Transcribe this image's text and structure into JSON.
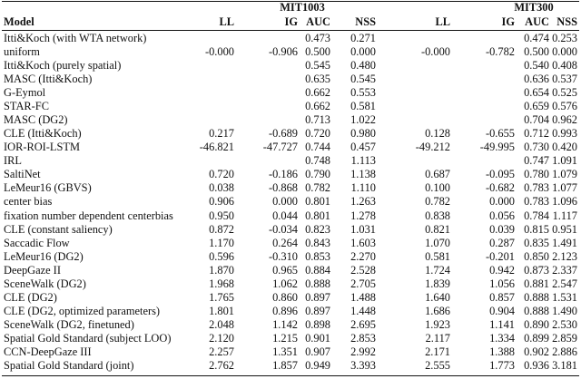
{
  "table": {
    "groups": [
      "MIT1003",
      "MIT300"
    ],
    "columns": [
      "Model",
      "LL",
      "IG",
      "AUC",
      "NSS",
      "LL",
      "IG",
      "AUC",
      "NSS"
    ],
    "rows": [
      [
        "Itti&Koch (with WTA network)",
        null,
        null,
        "0.473",
        "0.271",
        null,
        null,
        "0.474",
        "0.253"
      ],
      [
        "uniform",
        "-0.000",
        "-0.906",
        "0.500",
        "0.000",
        "-0.000",
        "-0.782",
        "0.500",
        "0.000"
      ],
      [
        "Itti&Koch (purely spatial)",
        null,
        null,
        "0.545",
        "0.480",
        null,
        null,
        "0.540",
        "0.408"
      ],
      [
        "MASC (Itti&Koch)",
        null,
        null,
        "0.635",
        "0.545",
        null,
        null,
        "0.636",
        "0.537"
      ],
      [
        "G-Eymol",
        null,
        null,
        "0.662",
        "0.553",
        null,
        null,
        "0.654",
        "0.525"
      ],
      [
        "STAR-FC",
        null,
        null,
        "0.662",
        "0.581",
        null,
        null,
        "0.659",
        "0.576"
      ],
      [
        "MASC (DG2)",
        null,
        null,
        "0.713",
        "1.022",
        null,
        null,
        "0.704",
        "0.962"
      ],
      [
        "CLE (Itti&Koch)",
        "0.217",
        "-0.689",
        "0.720",
        "0.980",
        "0.128",
        "-0.655",
        "0.712",
        "0.993"
      ],
      [
        "IOR-ROI-LSTM",
        "-46.821",
        "-47.727",
        "0.744",
        "0.457",
        "-49.212",
        "-49.995",
        "0.730",
        "0.420"
      ],
      [
        "IRL",
        null,
        null,
        "0.748",
        "1.113",
        null,
        null,
        "0.747",
        "1.091"
      ],
      [
        "SaltiNet",
        "0.720",
        "-0.186",
        "0.790",
        "1.138",
        "0.687",
        "-0.095",
        "0.780",
        "1.079"
      ],
      [
        "LeMeur16 (GBVS)",
        "0.038",
        "-0.868",
        "0.782",
        "1.110",
        "0.100",
        "-0.682",
        "0.783",
        "1.077"
      ],
      [
        "center bias",
        "0.906",
        "0.000",
        "0.801",
        "1.263",
        "0.782",
        "0.000",
        "0.783",
        "1.096"
      ],
      [
        "fixation number dependent centerbias",
        "0.950",
        "0.044",
        "0.801",
        "1.278",
        "0.838",
        "0.056",
        "0.784",
        "1.117"
      ],
      [
        "CLE (constant saliency)",
        "0.872",
        "-0.034",
        "0.823",
        "1.031",
        "0.821",
        "0.039",
        "0.815",
        "0.951"
      ],
      [
        "Saccadic Flow",
        "1.170",
        "0.264",
        "0.843",
        "1.603",
        "1.070",
        "0.287",
        "0.835",
        "1.491"
      ],
      [
        "LeMeur16 (DG2)",
        "0.596",
        "-0.310",
        "0.853",
        "2.270",
        "0.581",
        "-0.201",
        "0.850",
        "2.123"
      ],
      [
        "DeepGaze II",
        "1.870",
        "0.965",
        "0.884",
        "2.528",
        "1.724",
        "0.942",
        "0.873",
        "2.337"
      ],
      [
        "SceneWalk (DG2)",
        "1.968",
        "1.062",
        "0.888",
        "2.705",
        "1.839",
        "1.056",
        "0.881",
        "2.547"
      ],
      [
        "CLE (DG2)",
        "1.765",
        "0.860",
        "0.897",
        "1.488",
        "1.640",
        "0.857",
        "0.888",
        "1.531"
      ],
      [
        "CLE (DG2, optimized parameters)",
        "1.801",
        "0.896",
        "0.897",
        "1.448",
        "1.686",
        "0.904",
        "0.888",
        "1.490"
      ],
      [
        "SceneWalk (DG2, finetuned)",
        "2.048",
        "1.142",
        "0.898",
        "2.695",
        "1.923",
        "1.141",
        "0.890",
        "2.530"
      ],
      [
        "Spatial Gold Standard (subject LOO)",
        "2.120",
        "1.215",
        "0.901",
        "2.853",
        "2.117",
        "1.334",
        "0.899",
        "2.859"
      ],
      [
        "CCN-DeepGaze III",
        "2.257",
        "1.351",
        "0.907",
        "2.992",
        "2.171",
        "1.388",
        "0.902",
        "2.886"
      ],
      [
        "Spatial Gold Standard (joint)",
        "2.762",
        "1.857",
        "0.949",
        "3.393",
        "2.555",
        "1.773",
        "0.936",
        "3.181"
      ]
    ]
  }
}
